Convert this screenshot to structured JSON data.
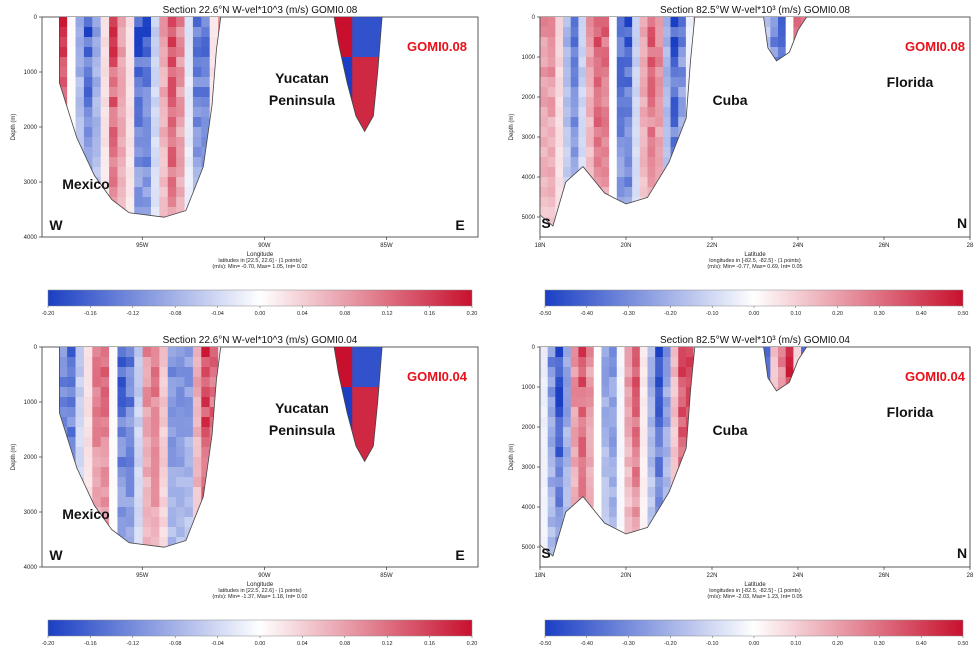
{
  "chart_data": [
    {
      "type": "heatmap",
      "title": "Section 22.6°N W-vel*10^3 (m/s) GOMI0.08",
      "xlabel": "Longitude",
      "ylabel": "Depth (m)",
      "x_ticks": [
        "95W",
        "90W",
        "85W"
      ],
      "y_ticks": [
        "0",
        "1000",
        "2000",
        "3000",
        "4000"
      ],
      "ylim": [
        4000,
        0
      ],
      "footer": [
        "latitudes in [22.5, 22.6] - (1 points)",
        "(m/s): Min= -0.70, Max= 1.05, Int= 0.02"
      ],
      "model_label": "GOMI0.08",
      "annotations": [
        "Mexico",
        "Yucatan",
        "Peninsula",
        "W",
        "E"
      ],
      "colorbar_ticks": [
        "-0.20",
        "-0.16",
        "-0.12",
        "-0.08",
        "-0.04",
        "0.00",
        "0.04",
        "0.08",
        "0.12",
        "0.16",
        "0.20"
      ],
      "colorbar_range": [
        -0.2,
        0.2
      ]
    },
    {
      "type": "heatmap",
      "title": "Section 82.5°W W-vel*10³ (m/s) GOMI0.08",
      "xlabel": "Latitude",
      "ylabel": "Depth (m)",
      "x_ticks": [
        "18N",
        "20N",
        "22N",
        "24N",
        "26N",
        "28"
      ],
      "y_ticks": [
        "0",
        "1000",
        "2000",
        "3000",
        "4000",
        "5000"
      ],
      "ylim": [
        5500,
        0
      ],
      "footer": [
        "longitudes in [-82.5, -82.5] - (1 points)",
        "(m/s): Min= -0.77, Max= 0.69, Int= 0.05"
      ],
      "model_label": "GOMI0.08",
      "annotations": [
        "Cuba",
        "Florida",
        "S",
        "N"
      ],
      "colorbar_ticks": [
        "-0.50",
        "-0.40",
        "-0.30",
        "-0.20",
        "-0.10",
        "0.00",
        "0.10",
        "0.20",
        "0.30",
        "0.40",
        "0.50"
      ],
      "colorbar_range": [
        -0.5,
        0.5
      ]
    },
    {
      "type": "heatmap",
      "title": "Section 22.6°N W-vel*10^3 (m/s) GOMI0.04",
      "xlabel": "Longitude",
      "ylabel": "Depth (m)",
      "x_ticks": [
        "95W",
        "90W",
        "85W"
      ],
      "y_ticks": [
        "0",
        "1000",
        "2000",
        "3000",
        "4000"
      ],
      "ylim": [
        4000,
        0
      ],
      "footer": [
        "latitudes in [22.5, 22.6] - (1 points)",
        "(m/s): Min= -1.37, Max= 1.18, Int= 0.02"
      ],
      "model_label": "GOMI0.04",
      "annotations": [
        "Mexico",
        "Yucatan",
        "Peninsula",
        "W",
        "E"
      ],
      "colorbar_ticks": [
        "-0.20",
        "-0.16",
        "-0.12",
        "-0.08",
        "-0.04",
        "0.00",
        "0.04",
        "0.08",
        "0.12",
        "0.16",
        "0.20"
      ],
      "colorbar_range": [
        -0.2,
        0.2
      ]
    },
    {
      "type": "heatmap",
      "title": "Section 82.5°W W-vel*10³ (m/s) GOMI0.04",
      "xlabel": "Latitude",
      "ylabel": "Depth (m)",
      "x_ticks": [
        "18N",
        "20N",
        "22N",
        "24N",
        "26N",
        "28"
      ],
      "y_ticks": [
        "0",
        "1000",
        "2000",
        "3000",
        "4000",
        "5000"
      ],
      "ylim": [
        5500,
        0
      ],
      "footer": [
        "longitudes in [-82.5, -82.5] - (1 points)",
        "(m/s): Min= -2.03, Max= 1.23, Int= 0.05"
      ],
      "model_label": "GOMI0.04",
      "annotations": [
        "Cuba",
        "Florida",
        "S",
        "N"
      ],
      "colorbar_ticks": [
        "-0.50",
        "-0.40",
        "-0.30",
        "-0.20",
        "-0.10",
        "0.00",
        "0.10",
        "0.20",
        "0.30",
        "0.40",
        "0.50"
      ],
      "colorbar_range": [
        -0.5,
        0.5
      ]
    }
  ],
  "colors": {
    "negative": "#1a3fc4",
    "positive": "#c8102e",
    "model_label": "#e8101a"
  }
}
